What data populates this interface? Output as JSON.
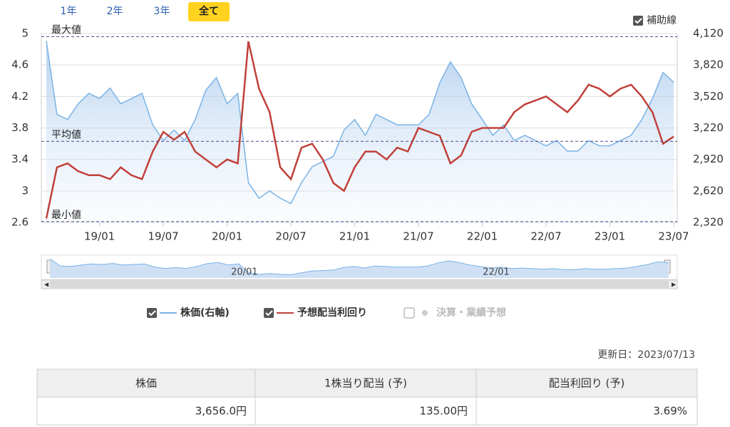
{
  "controls": {
    "ranges": [
      "1年",
      "2年",
      "3年",
      "全て"
    ],
    "aux_lines": "補助線"
  },
  "chart_data": {
    "type": "line",
    "x": [
      "18/08",
      "18/09",
      "18/10",
      "18/11",
      "18/12",
      "19/01",
      "19/02",
      "19/03",
      "19/04",
      "19/05",
      "19/06",
      "19/07",
      "19/08",
      "19/09",
      "19/10",
      "19/11",
      "19/12",
      "20/01",
      "20/02",
      "20/03",
      "20/04",
      "20/05",
      "20/06",
      "20/07",
      "20/08",
      "20/09",
      "20/10",
      "20/11",
      "20/12",
      "21/01",
      "21/02",
      "21/03",
      "21/04",
      "21/05",
      "21/06",
      "21/07",
      "21/08",
      "21/09",
      "21/10",
      "21/11",
      "21/12",
      "22/01",
      "22/02",
      "22/03",
      "22/04",
      "22/05",
      "22/06",
      "22/07",
      "22/08",
      "22/09",
      "22/10",
      "22/11",
      "22/12",
      "23/01",
      "23/02",
      "23/03",
      "23/04",
      "23/05",
      "23/06",
      "23/07"
    ],
    "xticks": [
      "19/01",
      "19/07",
      "20/01",
      "20/07",
      "21/01",
      "21/07",
      "22/01",
      "22/07",
      "23/01",
      "23/07"
    ],
    "ylim": [
      2.6,
      5
    ],
    "yticks": [
      2.6,
      3,
      3.4,
      3.8,
      4.2,
      4.6,
      5
    ],
    "y2lim": [
      2320,
      4120
    ],
    "y2ticks": [
      {
        "value": 2320,
        "label": "2,320"
      },
      {
        "value": 2620,
        "label": "2,620"
      },
      {
        "value": 2920,
        "label": "2,920"
      },
      {
        "value": 3220,
        "label": "3,220"
      },
      {
        "value": 3520,
        "label": "3,520"
      },
      {
        "value": 3820,
        "label": "3,820"
      },
      {
        "value": 4120,
        "label": "4,120"
      }
    ],
    "grid": true,
    "reference_lines": [
      {
        "label": "最大値",
        "value": 4.96
      },
      {
        "label": "平均値",
        "value": 3.63
      },
      {
        "label": "最小値",
        "value": 2.61
      }
    ],
    "series": [
      {
        "name": "株価(右軸)",
        "color": "#7ab3e6",
        "axis": "y2",
        "values": [
          4050,
          3350,
          3300,
          3450,
          3550,
          3500,
          3600,
          3450,
          3500,
          3550,
          3250,
          3100,
          3200,
          3100,
          3300,
          3580,
          3700,
          3450,
          3550,
          2700,
          2550,
          2620,
          2550,
          2500,
          2700,
          2850,
          2900,
          2950,
          3200,
          3300,
          3150,
          3350,
          3300,
          3250,
          3250,
          3250,
          3350,
          3650,
          3850,
          3700,
          3450,
          3300,
          3150,
          3250,
          3100,
          3150,
          3100,
          3050,
          3100,
          3000,
          3000,
          3100,
          3050,
          3050,
          3100,
          3150,
          3300,
          3500,
          3750,
          3656
        ]
      },
      {
        "name": "予想配当利回り",
        "color": "#c0403a",
        "values": [
          2.65,
          3.3,
          3.35,
          3.25,
          3.2,
          3.2,
          3.15,
          3.3,
          3.2,
          3.15,
          3.5,
          3.75,
          3.65,
          3.75,
          3.5,
          3.4,
          3.3,
          3.4,
          3.35,
          4.9,
          4.3,
          4.0,
          3.3,
          3.15,
          3.55,
          3.6,
          3.4,
          3.1,
          3.0,
          3.3,
          3.5,
          3.5,
          3.4,
          3.55,
          3.5,
          3.8,
          3.75,
          3.7,
          3.35,
          3.45,
          3.75,
          3.8,
          3.8,
          3.8,
          4.0,
          4.1,
          4.15,
          4.2,
          4.1,
          4.0,
          4.15,
          4.35,
          4.3,
          4.2,
          4.3,
          4.35,
          4.2,
          4.0,
          3.6,
          3.69
        ]
      }
    ],
    "navigator_labels": [
      "20/01",
      "22/01"
    ],
    "legend_extra": "決算・業績予想"
  },
  "updated": "更新日：2023/07/13",
  "table": {
    "headers": [
      "株価",
      "1株当り配当 (予)",
      "配当利回り (予)"
    ],
    "rows": [
      [
        "3,656.0円",
        "135.00円",
        "3.69%"
      ]
    ]
  }
}
